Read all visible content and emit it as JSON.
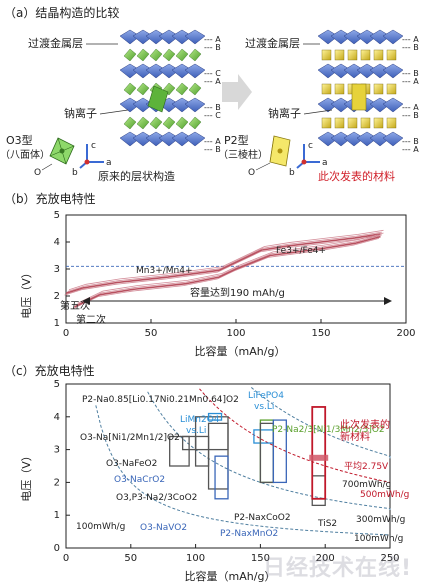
{
  "sections": {
    "a_title": "（a）结晶构造的比较",
    "b_title": "（b）充放电特性",
    "c_title": "（c）充放电特性"
  },
  "panel_a": {
    "left": {
      "layer_label": "过渡金属层",
      "ion_label": "钠离子",
      "type_label_1": "O3型",
      "type_label_2": "（八面体）",
      "caption": "原来的层状构造",
      "stack_letters": [
        "A",
        "B",
        "C",
        "A",
        "B",
        "C",
        "A",
        "B"
      ]
    },
    "right": {
      "layer_label": "过渡金属层",
      "ion_label": "钠离子",
      "type_label_1": "P2型",
      "type_label_2": "（三棱柱）",
      "caption": "此次发表的材料",
      "stack_letters": [
        "A",
        "B",
        "B",
        "A",
        "A",
        "B",
        "B",
        "A"
      ]
    },
    "axis_labels": {
      "c": "c",
      "a": "a",
      "b": "b",
      "o": "O"
    },
    "colors": {
      "caption_highlight": "#d0202a",
      "layer": "#4a6fc9",
      "ion_o3": "#6cc04a",
      "ion_p2": "#e6d23a"
    }
  },
  "panel_b": {
    "ylabel": "电压（V）",
    "xlabel": "比容量（mAh/g）",
    "x_ticks": [
      "0",
      "50",
      "100",
      "150",
      "200"
    ],
    "y_ticks": [
      "1",
      "2",
      "3",
      "4",
      "5"
    ],
    "ann_fe": "Fe3+/Fe4+",
    "ann_mn": "Mn3+/Mn4+",
    "ann_fifth": "第五次",
    "ann_second": "第二次",
    "ann_capacity": "容量达到190 mAh/g"
  },
  "chart_data": [
    {
      "type": "line",
      "title": "",
      "xlabel": "比容量（mAh/g）",
      "ylabel": "电压（V）",
      "xlim": [
        0,
        200
      ],
      "ylim": [
        1,
        5
      ],
      "series": [
        {
          "name": "",
          "x": [
            0,
            10,
            30,
            60,
            90,
            105,
            115,
            130,
            150,
            170,
            185
          ],
          "y": [
            2.1,
            2.3,
            2.5,
            2.7,
            2.95,
            3.4,
            3.7,
            3.85,
            4.0,
            4.15,
            4.3
          ]
        },
        {
          "name": "",
          "x": [
            185,
            170,
            150,
            120,
            100,
            90,
            70,
            40,
            20,
            5
          ],
          "y": [
            4.2,
            3.95,
            3.75,
            3.5,
            3.0,
            2.7,
            2.45,
            2.25,
            2.05,
            1.6
          ]
        }
      ],
      "reference_lines": [
        {
          "y": 3.1
        }
      ]
    },
    {
      "type": "scatter",
      "title": "",
      "xlabel": "比容量（mAh/g）",
      "ylabel": "电压（V）",
      "xlim": [
        0,
        250
      ],
      "ylim": [
        0,
        5
      ],
      "materials": [
        {
          "label": "P2-Na0.85[Li0.17Ni0.21Mn0.64]O2",
          "x": [
            100,
            125
          ],
          "y": [
            3.0,
            4.0
          ],
          "color": "#555555"
        },
        {
          "label": "LiMn2O4 vs.Li",
          "x": [
            110,
            120
          ],
          "y": [
            3.9,
            4.1
          ],
          "color": "#2a8fd6"
        },
        {
          "label": "LiFePO4 vs.Li",
          "x": [
            145,
            160
          ],
          "y": [
            3.2,
            3.6
          ],
          "color": "#2a8fd6"
        },
        {
          "label": "P2-Na2/3[Ni1/3Mn2/3]O2",
          "x": [
            150,
            160
          ],
          "y": [
            2.0,
            3.9
          ],
          "color": "#5aa02c"
        },
        {
          "label": "O3-Na[Ni1/2Mn1/2]O2",
          "x": [
            80,
            95
          ],
          "y": [
            2.5,
            3.4
          ],
          "color": "#555555"
        },
        {
          "label": "O3-NaFeO2",
          "x": [
            90,
            100
          ],
          "y": [
            3.0,
            3.4
          ],
          "color": "#555555"
        },
        {
          "label": "O3-NaCrO2",
          "x": [
            100,
            110
          ],
          "y": [
            2.5,
            3.4
          ],
          "color": "#555555"
        },
        {
          "label": "O3,P3-Na2/3CoO2",
          "x": [
            110,
            125
          ],
          "y": [
            1.8,
            3.8
          ],
          "color": "#555555"
        },
        {
          "label": "O3-NaVO2",
          "x": [
            115,
            125
          ],
          "y": [
            1.5,
            2.8
          ],
          "color": "#3a66b8"
        },
        {
          "label": "P2-NaxCoO2",
          "x": [
            150,
            160
          ],
          "y": [
            2.0,
            3.8
          ],
          "color": "#555555"
        },
        {
          "label": "P2-NaxMnO2",
          "x": [
            160,
            170
          ],
          "y": [
            2.0,
            3.9
          ],
          "color": "#3a66b8"
        },
        {
          "label": "TiS2",
          "x": [
            190,
            200
          ],
          "y": [
            1.3,
            2.2
          ],
          "color": "#555555"
        },
        {
          "label": "此次发表的新材料",
          "x": [
            190,
            200
          ],
          "y": [
            1.5,
            4.3
          ],
          "color": "#c0182a"
        }
      ],
      "energy_density_curves": [
        "100mWh/g",
        "300mWh/g",
        "500mWh/g",
        "700mWh/g"
      ],
      "avg_label": "平均2.75V",
      "avg_voltage": 2.75
    }
  ],
  "panel_c": {
    "ylabel": "电压（V）",
    "xlabel": "比容量（mAh/g）",
    "x_ticks": [
      "0",
      "50",
      "100",
      "150",
      "200",
      "250"
    ],
    "y_ticks": [
      "0",
      "1",
      "2",
      "3",
      "4",
      "5"
    ],
    "labels": {
      "p2_li": "P2-Na0.85[Li0.17Ni0.21Mn0.64]O2",
      "limn": "LiMn2O4",
      "limn_vs": "vs.Li",
      "lifepo": "LiFePO4",
      "lifepo_vs": "vs.Li",
      "p2_nimn": "P2-Na2/3[Ni1/3Mn2/3]O2",
      "o3_nimn": "O3-Na[Ni1/2Mn1/2]O2",
      "o3_fe": "O3-NaFeO2",
      "o3_cr": "O3-NaCrO2",
      "o3p3_co": "O3,P3-Na2/3CoO2",
      "o3_v": "O3-NaVO2",
      "p2_co": "P2-NaxCoO2",
      "p2_mn": "P2-NaxMnO2",
      "tis2": "TiS2",
      "new_mat_1": "此次发表的",
      "new_mat_2": "新材料",
      "avg": "平均2.75V",
      "e700": "700mWh/g",
      "e500": "500mWh/g",
      "e300": "300mWh/g",
      "e100a": "100mWh/g",
      "e100b": "100mWh/g"
    }
  },
  "watermark": "日经技术在线!"
}
